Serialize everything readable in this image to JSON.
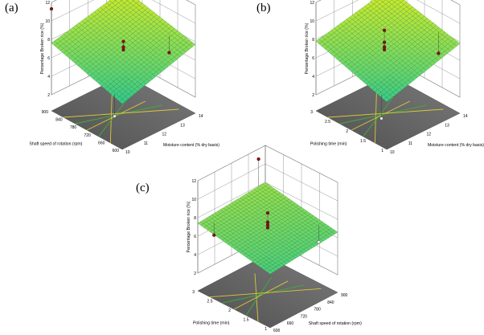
{
  "chart_data": [
    {
      "type": "surface",
      "panel": "(a)",
      "zlabel": "Percentage Broken rice (%)",
      "zticks": [
        "2",
        "4",
        "6",
        "8",
        "10",
        "12"
      ],
      "zlim": [
        2,
        12
      ],
      "xlabel": "Moisture content (% dry basis)",
      "xticks": [
        "10",
        "11",
        "12",
        "13",
        "14"
      ],
      "xlim": [
        10,
        14
      ],
      "ylabel": "Shaft speed of rotation (rpm)",
      "yticks": [
        "600",
        "660",
        "720",
        "780",
        "840",
        "900"
      ],
      "ylim": [
        600,
        900
      ],
      "surface": {
        "x": [
          10,
          14
        ],
        "y": [
          600,
          900
        ],
        "z": [
          [
            5.2,
            7.6
          ],
          [
            7.7,
            9.5
          ]
        ]
      },
      "points_above": [
        {
          "x": 10,
          "y": 900,
          "z": 11.3
        },
        {
          "x": 12,
          "y": 750,
          "z": 7.9
        },
        {
          "x": 12,
          "y": 750,
          "z": 7.3
        },
        {
          "x": 12,
          "y": 750,
          "z": 7.0
        },
        {
          "x": 13.5,
          "y": 900,
          "z": 10.3
        },
        {
          "x": 13.6,
          "y": 680,
          "z": 6.1
        }
      ],
      "points_below": [
        {
          "x": 10.1,
          "y": 640,
          "z": 3.2
        }
      ]
    },
    {
      "type": "surface",
      "panel": "(b)",
      "zlabel": "Percentage Broken rice (%)",
      "zticks": [
        "2",
        "4",
        "6",
        "8",
        "10",
        "12"
      ],
      "zlim": [
        2,
        12
      ],
      "xlabel": "Moisture content (% dry basis)",
      "xticks": [
        "10",
        "11",
        "12",
        "13",
        "14"
      ],
      "xlim": [
        10,
        14
      ],
      "ylabel": "Polishing time (min)",
      "yticks": [
        "1",
        "1.5",
        "2",
        "2.5",
        "3"
      ],
      "ylim": [
        1,
        3
      ],
      "surface": {
        "x": [
          10,
          14
        ],
        "y": [
          1,
          3
        ],
        "z": [
          [
            5.4,
            7.8
          ],
          [
            7.8,
            9.6
          ]
        ]
      },
      "points_above": [
        {
          "x": 12,
          "y": 2.1,
          "z": 8.9
        },
        {
          "x": 12,
          "y": 2.1,
          "z": 7.6
        },
        {
          "x": 12,
          "y": 2.1,
          "z": 7.1
        },
        {
          "x": 12,
          "y": 2.1,
          "z": 6.8
        },
        {
          "x": 13.3,
          "y": 3,
          "z": 10.6
        },
        {
          "x": 13.8,
          "y": 1.5,
          "z": 5.9
        }
      ],
      "points_below": [
        {
          "x": 10.1,
          "y": 1.2,
          "z": 3.1
        }
      ]
    },
    {
      "type": "surface",
      "panel": "(c)",
      "zlabel": "Percentage Broken rice (%)",
      "zticks": [
        "2",
        "4",
        "6",
        "8",
        "10",
        "12"
      ],
      "zlim": [
        2,
        12
      ],
      "xlabel": "Shaft speed of rotation (rpm)",
      "xticks": [
        "600",
        "660",
        "720",
        "780",
        "840",
        "900"
      ],
      "xlim": [
        600,
        900
      ],
      "ylabel": "Polishing time (min)",
      "yticks": [
        "1",
        "1.5",
        "2",
        "2.5",
        "3"
      ],
      "ylim": [
        1,
        3
      ],
      "surface": {
        "x": [
          600,
          900
        ],
        "y": [
          1,
          3
        ],
        "z": [
          [
            5.9,
            7.4
          ],
          [
            6.6,
            8.0
          ]
        ]
      },
      "points_above": [
        {
          "x": 750,
          "y": 2,
          "z": 8.6
        },
        {
          "x": 750,
          "y": 2,
          "z": 7.6
        },
        {
          "x": 750,
          "y": 2,
          "z": 7.3
        },
        {
          "x": 750,
          "y": 2,
          "z": 7.0
        },
        {
          "x": 870,
          "y": 3,
          "z": 10.9
        },
        {
          "x": 640,
          "y": 2.8,
          "z": 6.0
        }
      ],
      "points_below": [
        {
          "x": 880,
          "y": 1.4,
          "z": 5.0
        }
      ]
    }
  ]
}
